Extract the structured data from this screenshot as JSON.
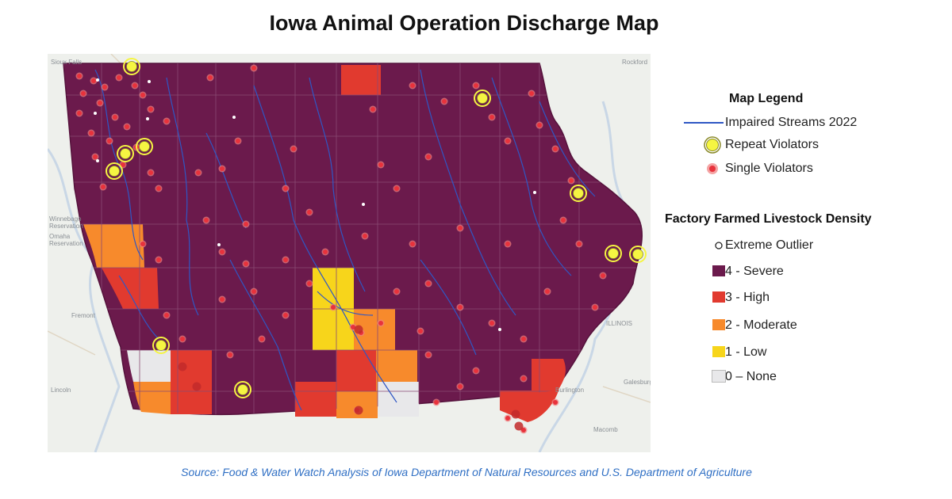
{
  "title": "Iowa Animal Operation Discharge Map",
  "source": "Source: Food & Water Watch Analysis of Iowa Department of Natural Resources and U.S. Department of Agriculture",
  "legend": {
    "title": "Map Legend",
    "streams": {
      "label": "Impaired Streams 2022",
      "color": "#2f57c4"
    },
    "repeat_violators": {
      "label": "Repeat Violators",
      "color": "#f5f542"
    },
    "single_violators": {
      "label": "Single Violators",
      "color": "#e8323c"
    },
    "density_title": "Factory Farmed Livestock Density",
    "outlier": {
      "label": "Extreme Outlier"
    },
    "classes": [
      {
        "label": "4 - Severe",
        "color": "#6b1a4c"
      },
      {
        "label": "3 - High",
        "color": "#e13a2f"
      },
      {
        "label": "2 - Moderate",
        "color": "#f78a2c"
      },
      {
        "label": "1 - Low",
        "color": "#f7d51b"
      },
      {
        "label": "0 – None",
        "color": "#e8e8ea"
      }
    ]
  },
  "basemap_labels": {
    "sioux_falls": "Sioux Falls",
    "rockford": "Rockford",
    "illinois": "ILLINOIS",
    "winnebago": "Winnebago\nReservation",
    "omaha": "Omaha\nReservation",
    "fremont": "Fremont",
    "lincoln": "Lincoln",
    "burlington": "Burlington",
    "macomb": "Macomb",
    "galesburg": "Galesburg"
  }
}
